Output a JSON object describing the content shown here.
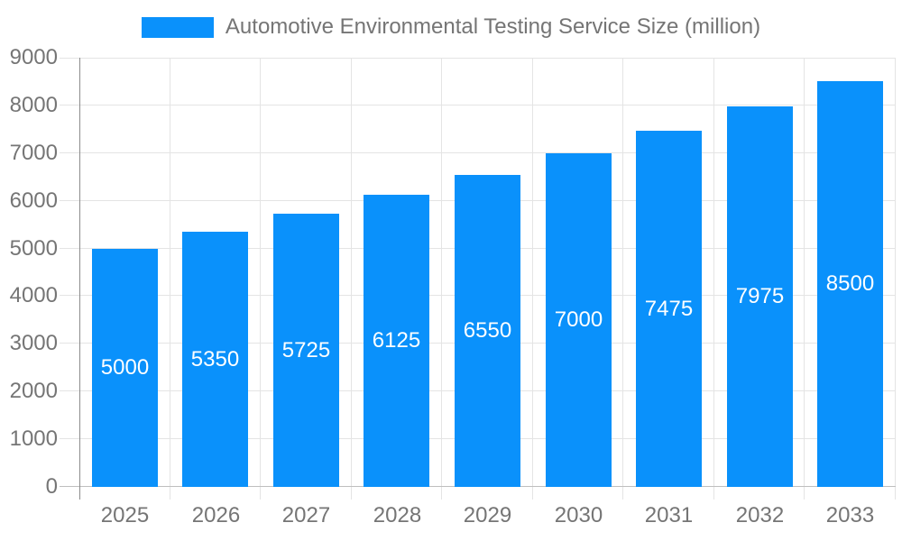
{
  "legend": {
    "label": "Automotive Environmental Testing Service Size (million)"
  },
  "colors": {
    "bar": "#0a91fb",
    "axis_text": "#757575",
    "grid": "#e4e4e4",
    "axis_line": "#8c8c8c",
    "baseline": "#bfbfbf",
    "value_label": "#ffffff",
    "background": "#ffffff"
  },
  "chart_data": {
    "type": "bar",
    "title": "Automotive Environmental Testing Service Size (million)",
    "categories": [
      "2025",
      "2026",
      "2027",
      "2028",
      "2029",
      "2030",
      "2031",
      "2032",
      "2033"
    ],
    "series": [
      {
        "name": "Automotive Environmental Testing Service Size (million)",
        "values": [
          5000,
          5350,
          5725,
          6125,
          6550,
          7000,
          7475,
          7975,
          8500
        ]
      }
    ],
    "xlabel": "",
    "ylabel": "",
    "ylim": [
      0,
      9000
    ],
    "ytick_step": 1000,
    "yticks": [
      0,
      1000,
      2000,
      3000,
      4000,
      5000,
      6000,
      7000,
      8000,
      9000
    ],
    "grid": true,
    "legend_position": "top",
    "value_label_position": "inside-center"
  }
}
